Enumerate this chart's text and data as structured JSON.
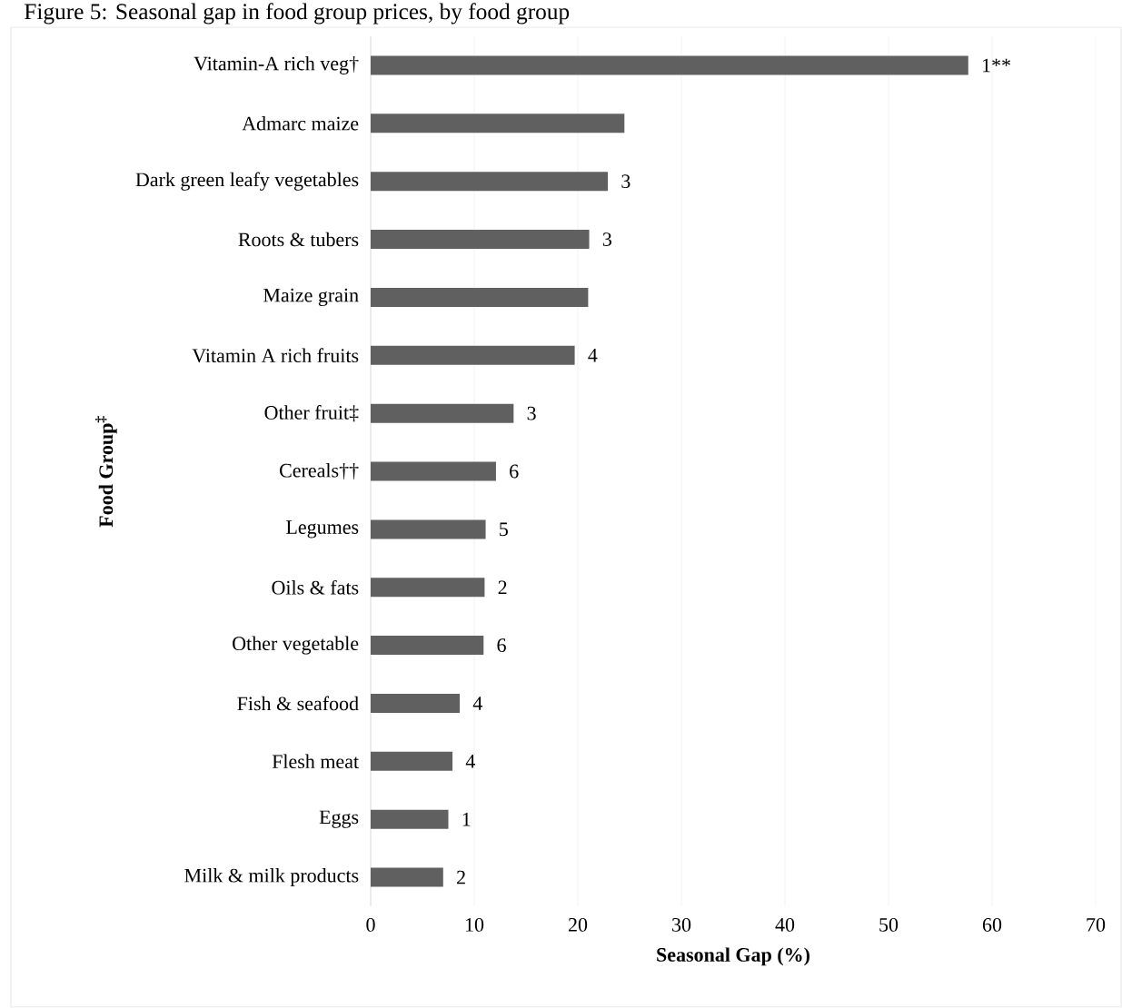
{
  "chart_data": {
    "type": "bar",
    "orientation": "horizontal",
    "title": "Figure 5: Seasonal gap in food group prices, by food group",
    "xlabel": "Seasonal Gap (%)",
    "ylabel": "Food Group$^{‡}$",
    "categories": [
      "Vitamin-A rich veg†",
      "Admarc maize",
      "Dark green leafy vegetables",
      "Roots & tubers",
      "Maize grain",
      "Vitamin A rich fruits",
      "Other fruit‡",
      "Cereals††",
      "Legumes",
      "Oils & fats",
      "Other vegetable",
      "Fish & seafood",
      "Flesh meat",
      "Eggs",
      "Milk & milk products"
    ],
    "values": [
      57.7,
      24.5,
      22.9,
      21.1,
      21.0,
      19.7,
      13.8,
      12.1,
      11.1,
      11.0,
      10.9,
      8.6,
      7.9,
      7.5,
      7.0
    ],
    "annotations": [
      {
        "text": "1**",
        "x": 57.7,
        "y": "Vitamin-A rich veg†"
      },
      {
        "text": "3",
        "x": 22.9,
        "y": "Dark green leafy vegetables"
      },
      {
        "text": "3",
        "x": 21.1,
        "y": "Roots & tubers"
      },
      {
        "text": "4",
        "x": 19.7,
        "y": "Vitamin A rich fruits"
      },
      {
        "text": "3",
        "x": 13.8,
        "y": "Other fruit‡"
      },
      {
        "text": "6",
        "x": 12.1,
        "y": "Cereals††"
      },
      {
        "text": "5",
        "x": 11.1,
        "y": "Legumes"
      },
      {
        "text": "2",
        "x": 11.0,
        "y": "Oils & fats"
      },
      {
        "text": "6",
        "x": 10.9,
        "y": "Other vegetable"
      },
      {
        "text": "4",
        "x": 8.6,
        "y": "Fish & seafood"
      },
      {
        "text": "4",
        "x": 7.9,
        "y": "Flesh meat"
      },
      {
        "text": "1",
        "x": 7.5,
        "y": "Eggs"
      },
      {
        "text": "2",
        "x": 7.0,
        "y": "Milk & milk products"
      }
    ],
    "color": "#606060",
    "xlim": [
      0,
      70
    ],
    "xticks": [
      0,
      10,
      20,
      30,
      40,
      50,
      60,
      70
    ],
    "grid": "x"
  }
}
